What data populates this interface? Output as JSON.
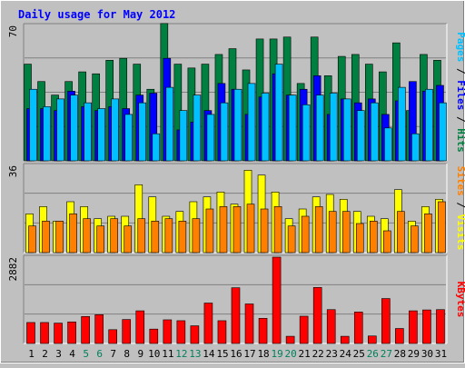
{
  "chart_data": {
    "type": "bar",
    "title": "Daily usage for May 2012",
    "categories": [
      "1",
      "2",
      "3",
      "4",
      "5",
      "6",
      "7",
      "8",
      "9",
      "10",
      "11",
      "12",
      "13",
      "14",
      "15",
      "16",
      "17",
      "18",
      "19",
      "20",
      "21",
      "22",
      "23",
      "24",
      "25",
      "26",
      "27",
      "28",
      "29",
      "30",
      "31"
    ],
    "weekend_days": [
      "5",
      "6",
      "12",
      "13",
      "19",
      "20",
      "26",
      "27"
    ],
    "panels": [
      {
        "id": "hits_files_pages",
        "ymax": 70,
        "ylabel_parts": [
          {
            "text": "Pages",
            "color": "#00c0ff"
          },
          {
            "text": " / ",
            "color": "#000000"
          },
          {
            "text": "Files",
            "color": "#0000ff"
          },
          {
            "text": " / ",
            "color": "#000000"
          },
          {
            "text": "Hits",
            "color": "#008040"
          }
        ],
        "series": [
          {
            "name": "Hits",
            "color": "#008040",
            "values": [
              50,
              41,
              34,
              41,
              46,
              45,
              52,
              53,
              50,
              37,
              71,
              50,
              48,
              50,
              55,
              58,
              47,
              63,
              63,
              64,
              40,
              64,
              44,
              54,
              55,
              50,
              46,
              61,
              26,
              55,
              52
            ]
          },
          {
            "name": "Files",
            "color": "#0000ff",
            "values": [
              27,
              27,
              26,
              36,
              28,
              26,
              28,
              27,
              34,
              35,
              53,
              16,
              20,
              26,
              40,
              37,
              24,
              33,
              45,
              34,
              37,
              44,
              24,
              32,
              30,
              32,
              24,
              31,
              41,
              36,
              39
            ]
          },
          {
            "name": "Pages",
            "color": "#00c0ff",
            "values": [
              37,
              28,
              32,
              34,
              30,
              27,
              32,
              24,
              30,
              14,
              38,
              26,
              34,
              24,
              30,
              37,
              40,
              35,
              50,
              34,
              29,
              34,
              35,
              32,
              26,
              30,
              17,
              38,
              14,
              37,
              30
            ]
          }
        ]
      },
      {
        "id": "visits_sites",
        "ymax": 36,
        "ylabel_parts": [
          {
            "text": "Sites",
            "color": "#ff8000"
          },
          {
            "text": " / ",
            "color": "#000000"
          },
          {
            "text": "Visits",
            "color": "#ffff00"
          }
        ],
        "series": [
          {
            "name": "Visits",
            "color": "#ffff00",
            "values": [
              16,
              19,
              13,
              21,
              19,
              14,
              15,
              15,
              28,
              23,
              15,
              17,
              21,
              23,
              25,
              20,
              34,
              32,
              25,
              14,
              18,
              23,
              24,
              22,
              17,
              15,
              14,
              26,
              13,
              19,
              22
            ]
          },
          {
            "name": "Sites",
            "color": "#ff8000",
            "values": [
              11,
              13,
              13,
              16,
              14,
              11,
              14,
              11,
              14,
              13,
              14,
              13,
              14,
              18,
              19,
              19,
              20,
              18,
              19,
              11,
              15,
              19,
              17,
              17,
              12,
              13,
              9,
              17,
              11,
              16,
              21
            ]
          }
        ]
      },
      {
        "id": "kbytes",
        "ymax": 2882,
        "ylabel_parts": [
          {
            "text": "KBytes",
            "color": "#ff0000"
          }
        ],
        "series": [
          {
            "name": "KBytes",
            "color": "#ff0000",
            "values": [
              700,
              700,
              680,
              720,
              900,
              960,
              460,
              800,
              1090,
              480,
              790,
              760,
              590,
              1350,
              760,
              1860,
              1320,
              840,
              2882,
              240,
              910,
              1870,
              1130,
              240,
              1050,
              250,
              1500,
              500,
              1090,
              1120,
              1130
            ]
          }
        ]
      }
    ],
    "colors": {
      "background": "#c0c0c0",
      "plot_background": "#c0c0c0",
      "title_color": "#0000ff",
      "weekday_label": "#000000",
      "weekend_label": "#00805c"
    }
  }
}
